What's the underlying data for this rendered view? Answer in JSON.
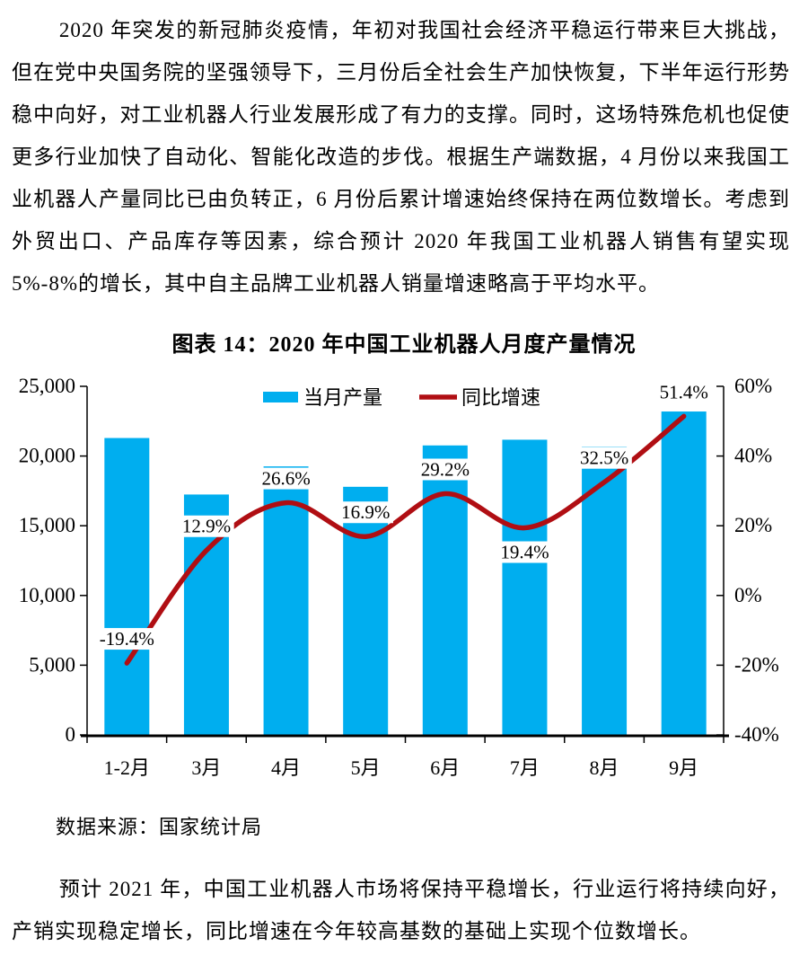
{
  "document": {
    "paragraph_1": "2020 年突发的新冠肺炎疫情，年初对我国社会经济平稳运行带来巨大挑战，但在党中央国务院的坚强领导下，三月份后全社会生产加快恢复，下半年运行形势稳中向好，对工业机器人行业发展形成了有力的支撑。同时，这场特殊危机也促使更多行业加快了自动化、智能化改造的步伐。根据生产端数据，4 月份以来我国工业机器人产量同比已由负转正，6 月份后累计增速始终保持在两位数增长。考虑到外贸出口、产品库存等因素，综合预计 2020 年我国工业机器人销售有望实现 5%-8%的增长，其中自主品牌工业机器人销量增速略高于平均水平。",
    "chart_title": "图表 14：2020 年中国工业机器人月度产量情况",
    "data_source": "数据来源：国家统计局",
    "paragraph_2": "预计 2021 年，中国工业机器人市场将保持平稳增长，行业运行将持续向好，产销实现稳定增长，同比增速在今年较高基数的基础上实现个位数增长。"
  },
  "chart_data": {
    "type": "bar+line",
    "title": "图表 14：2020 年中国工业机器人月度产量情况",
    "categories": [
      "1-2月",
      "3月",
      "4月",
      "5月",
      "6月",
      "7月",
      "8月",
      "9月"
    ],
    "series": [
      {
        "name": "当月产量",
        "type": "bar",
        "axis": "left",
        "color": "#00AEEF",
        "values": [
          21292,
          17241,
          19257,
          17794,
          20761,
          21170,
          20663,
          23194
        ]
      },
      {
        "name": "同比增速",
        "type": "line",
        "axis": "right",
        "color": "#B00E13",
        "values": [
          -19.4,
          12.9,
          26.6,
          16.9,
          29.2,
          19.4,
          32.5,
          51.4
        ],
        "labels": [
          "-19.4%",
          "12.9%",
          "26.6%",
          "16.9%",
          "29.2%",
          "19.4%",
          "32.5%",
          "51.4%"
        ],
        "label_positions": [
          "above",
          "above",
          "above",
          "above",
          "above",
          "below",
          "above",
          "above"
        ]
      }
    ],
    "left_axis": {
      "min": 0,
      "max": 25000,
      "ticks": [
        "25,000",
        "20,000",
        "15,000",
        "10,000",
        "5,000",
        "0"
      ]
    },
    "right_axis": {
      "min": -40,
      "max": 60,
      "ticks": [
        "60%",
        "40%",
        "20%",
        "0%",
        "-20%",
        "-40%"
      ]
    },
    "legend": {
      "position": "top"
    },
    "grid": false
  }
}
